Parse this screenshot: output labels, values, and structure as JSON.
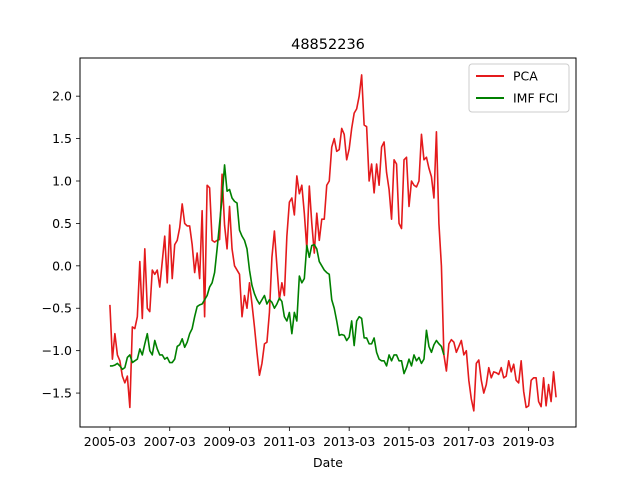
{
  "chart_data": {
    "type": "line",
    "title": "48852236",
    "xlabel": "Date",
    "ylabel": "",
    "x_start": "2005-03",
    "x_step_months": 1,
    "x_range": [
      "2004-03",
      "2020-10"
    ],
    "xticks": [
      "2005-03",
      "2007-03",
      "2009-03",
      "2011-03",
      "2013-03",
      "2015-03",
      "2017-03",
      "2019-03"
    ],
    "ylim": [
      -1.9,
      2.45
    ],
    "yticks": [
      -1.5,
      -1.0,
      -0.5,
      0.0,
      0.5,
      1.0,
      1.5,
      2.0
    ],
    "ytick_labels": [
      "−1.5",
      "−1.0",
      "−0.5",
      "0.0",
      "0.5",
      "1.0",
      "1.5",
      "2.0"
    ],
    "grid": false,
    "legend_position": "top-right",
    "series": [
      {
        "name": "PCA",
        "color": "#e41a1c",
        "values": [
          -0.46,
          -1.1,
          -0.8,
          -1.05,
          -1.12,
          -1.3,
          -1.38,
          -1.3,
          -1.67,
          -0.72,
          -0.74,
          -0.6,
          0.05,
          -0.62,
          0.2,
          -0.5,
          -0.54,
          -0.05,
          -0.1,
          -0.05,
          -0.25,
          0.05,
          0.35,
          -0.2,
          0.48,
          -0.15,
          0.25,
          0.3,
          0.45,
          0.73,
          0.5,
          0.47,
          0.47,
          0.25,
          -0.08,
          0.15,
          -0.15,
          0.65,
          -0.6,
          0.95,
          0.92,
          0.3,
          0.28,
          0.3,
          0.31,
          1.08,
          0.48,
          0.2,
          0.7,
          0.2,
          0.0,
          -0.05,
          -0.1,
          -0.6,
          -0.35,
          -0.5,
          -0.2,
          -0.45,
          -0.72,
          -1.02,
          -1.29,
          -1.15,
          -0.92,
          -0.9,
          -0.55,
          0.1,
          0.41,
          0.0,
          -0.4,
          -0.2,
          -0.35,
          0.35,
          0.75,
          0.8,
          0.6,
          1.06,
          0.85,
          0.95,
          0.62,
          0.2,
          0.94,
          0.5,
          0.15,
          0.62,
          0.3,
          0.55,
          0.55,
          0.95,
          1.0,
          1.4,
          1.5,
          1.35,
          1.37,
          1.62,
          1.55,
          1.25,
          1.38,
          1.62,
          1.8,
          1.85,
          2.0,
          2.25,
          1.66,
          1.64,
          1.0,
          1.2,
          0.86,
          1.2,
          0.95,
          1.4,
          1.46,
          1.1,
          0.9,
          0.55,
          1.25,
          1.2,
          0.5,
          0.44,
          1.25,
          1.28,
          0.7,
          1.0,
          0.95,
          0.93,
          1.0,
          1.55,
          1.25,
          1.28,
          1.15,
          1.05,
          0.8,
          1.58,
          0.5,
          0.0,
          -1.05,
          -1.24,
          -0.92,
          -0.87,
          -0.9,
          -1.02,
          -0.95,
          -0.88,
          -1.05,
          -1.0,
          -1.35,
          -1.57,
          -1.71,
          -1.15,
          -1.11,
          -1.35,
          -1.5,
          -1.4,
          -1.2,
          -1.32,
          -1.25,
          -1.26,
          -1.28,
          -1.2,
          -1.32,
          -1.3,
          -1.12,
          -1.25,
          -1.16,
          -1.35,
          -1.38,
          -1.12,
          -1.48,
          -1.67,
          -1.65,
          -1.35,
          -1.32,
          -1.32,
          -1.6,
          -1.66,
          -1.32,
          -1.65,
          -1.4,
          -1.6,
          -1.25,
          -1.55
        ]
      },
      {
        "name": "IMF FCI",
        "color": "#008000",
        "values": [
          -1.18,
          -1.18,
          -1.17,
          -1.15,
          -1.18,
          -1.22,
          -1.2,
          -1.08,
          -1.05,
          -1.14,
          -1.12,
          -1.1,
          -0.98,
          -1.05,
          -0.92,
          -0.8,
          -1.0,
          -1.05,
          -0.88,
          -0.98,
          -1.05,
          -1.05,
          -1.1,
          -1.08,
          -1.14,
          -1.14,
          -1.1,
          -0.95,
          -0.93,
          -0.86,
          -0.96,
          -0.9,
          -0.8,
          -0.74,
          -0.6,
          -0.48,
          -0.46,
          -0.45,
          -0.4,
          -0.35,
          -0.25,
          -0.2,
          -0.08,
          0.2,
          0.5,
          0.8,
          1.19,
          0.88,
          0.9,
          0.8,
          0.76,
          0.74,
          0.42,
          0.35,
          0.3,
          0.2,
          -0.05,
          -0.23,
          -0.33,
          -0.4,
          -0.45,
          -0.4,
          -0.35,
          -0.45,
          -0.4,
          -0.43,
          -0.5,
          -0.45,
          -0.38,
          -0.42,
          -0.6,
          -0.65,
          -0.55,
          -0.8,
          -0.55,
          -0.65,
          -0.12,
          -0.2,
          -0.15,
          0.24,
          0.1,
          0.24,
          0.25,
          0.2,
          0.05,
          0.0,
          -0.05,
          -0.08,
          -0.1,
          -0.4,
          -0.5,
          -0.65,
          -0.82,
          -0.81,
          -0.82,
          -0.88,
          -0.84,
          -0.65,
          -0.94,
          -0.65,
          -0.6,
          -0.62,
          -0.85,
          -0.85,
          -0.92,
          -0.92,
          -0.85,
          -1.02,
          -1.1,
          -1.12,
          -1.12,
          -1.18,
          -1.05,
          -1.12,
          -1.05,
          -1.05,
          -1.12,
          -1.12,
          -1.27,
          -1.2,
          -1.1,
          -1.18,
          -1.05,
          -1.12,
          -1.08,
          -1.15,
          -1.1,
          -0.76,
          -0.95,
          -1.02,
          -0.93,
          -0.88,
          -0.92,
          -0.95,
          -1.05
        ]
      }
    ]
  }
}
